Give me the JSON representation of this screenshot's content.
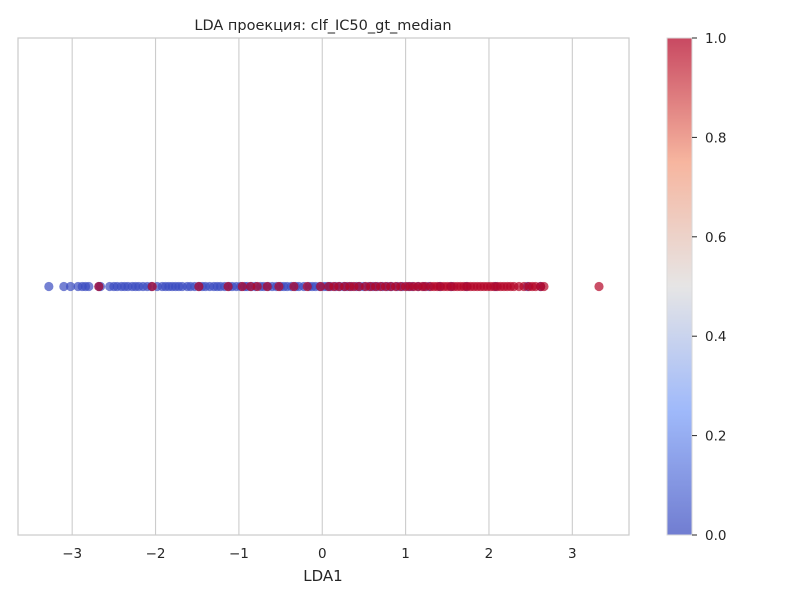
{
  "chart_data": {
    "type": "scatter",
    "title": "LDA проекция: clf_IC50_gt_median",
    "xlabel": "LDA1",
    "ylabel": "",
    "xlim": [
      -3.65,
      3.68
    ],
    "ylim": [
      -1,
      1
    ],
    "xticks": [
      -3,
      -2,
      -1,
      0,
      1,
      2,
      3
    ],
    "xtick_labels": [
      "−3",
      "−2",
      "−1",
      "0",
      "1",
      "2",
      "3"
    ],
    "grid": true,
    "colormap": "coolwarm",
    "colorbar": {
      "range": [
        0,
        1
      ],
      "ticks": [
        0.0,
        0.2,
        0.4,
        0.6,
        0.8,
        1.0
      ],
      "tick_labels": [
        "0.0",
        "0.2",
        "0.4",
        "0.6",
        "0.8",
        "1.0"
      ]
    },
    "colors": {
      "class_0": "#3b4cc0",
      "class_1": "#b40426"
    },
    "series": [
      {
        "class": 0,
        "x": [
          -3.28,
          -3.1,
          -3.02,
          -2.93,
          -2.88,
          -2.84,
          -2.8,
          -2.68,
          -2.66,
          -2.55,
          -2.5,
          -2.46,
          -2.41,
          -2.37,
          -2.33,
          -2.28,
          -2.24,
          -2.2,
          -2.15,
          -2.1,
          -2.05,
          -1.98,
          -1.92,
          -1.88,
          -1.84,
          -1.8,
          -1.76,
          -1.72,
          -1.68,
          -1.62,
          -1.58,
          -1.53,
          -1.48,
          -1.44,
          -1.4,
          -1.35,
          -1.3,
          -1.26,
          -1.22,
          -1.17,
          -1.12,
          -1.08,
          -1.03,
          -0.98,
          -0.93,
          -0.9,
          -0.85,
          -0.8,
          -0.74,
          -0.7,
          -0.65,
          -0.6,
          -0.55,
          -0.5,
          -0.46,
          -0.42,
          -0.37,
          -0.32,
          -0.28,
          -0.22,
          -0.16,
          -0.12,
          -0.08,
          -0.03,
          0.02,
          0.06,
          0.1,
          0.16,
          0.21,
          0.26,
          0.3,
          0.35,
          0.41,
          0.45,
          0.5,
          0.56,
          0.61,
          0.66,
          0.72,
          0.78,
          0.83,
          0.9,
          0.96,
          1.03,
          1.08,
          1.15,
          1.22,
          1.28,
          1.41,
          1.55,
          1.73,
          2.08,
          2.46,
          2.62
        ]
      },
      {
        "class": 1,
        "x": [
          -2.68,
          -2.04,
          -1.48,
          -1.13,
          -0.96,
          -0.86,
          -0.78,
          -0.66,
          -0.52,
          -0.34,
          -0.18,
          -0.02,
          0.08,
          0.14,
          0.2,
          0.27,
          0.33,
          0.38,
          0.44,
          0.52,
          0.58,
          0.64,
          0.7,
          0.76,
          0.82,
          0.88,
          0.94,
          1.0,
          1.05,
          1.1,
          1.15,
          1.2,
          1.24,
          1.3,
          1.34,
          1.38,
          1.42,
          1.46,
          1.5,
          1.54,
          1.58,
          1.62,
          1.66,
          1.7,
          1.74,
          1.78,
          1.82,
          1.86,
          1.9,
          1.94,
          1.98,
          2.02,
          2.06,
          2.1,
          2.14,
          2.18,
          2.22,
          2.26,
          2.3,
          2.36,
          2.42,
          2.48,
          2.52,
          2.56,
          2.62,
          2.66,
          3.32
        ]
      }
    ]
  }
}
